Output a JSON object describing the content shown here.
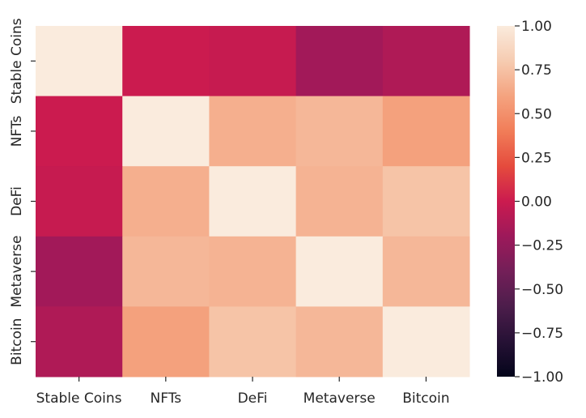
{
  "chart_data": {
    "type": "heatmap",
    "title": "",
    "xlabel": "",
    "ylabel": "",
    "x_categories": [
      "Stable Coins",
      "NFTs",
      "DeFi",
      "Metaverse",
      "Bitcoin"
    ],
    "y_categories": [
      "Stable Coins",
      "NFTs",
      "DeFi",
      "Metaverse",
      "Bitcoin"
    ],
    "values": [
      [
        1.0,
        0.0,
        -0.02,
        -0.18,
        -0.12
      ],
      [
        0.0,
        1.0,
        0.66,
        0.7,
        0.59
      ],
      [
        -0.02,
        0.66,
        1.0,
        0.68,
        0.76
      ],
      [
        -0.18,
        0.7,
        0.68,
        1.0,
        0.7
      ],
      [
        -0.12,
        0.59,
        0.76,
        0.7,
        1.0
      ]
    ],
    "colorbar": {
      "min": -1.0,
      "max": 1.0,
      "ticks": [
        "1.00",
        "0.75",
        "0.50",
        "0.25",
        "0.00",
        "−0.25",
        "−0.50",
        "−0.75",
        "−1.00"
      ],
      "tick_values": [
        1.0,
        0.75,
        0.5,
        0.25,
        0.0,
        -0.25,
        -0.5,
        -0.75,
        -1.0
      ],
      "colormap": "rocket"
    },
    "grid": false,
    "legend": "colorbar right"
  }
}
